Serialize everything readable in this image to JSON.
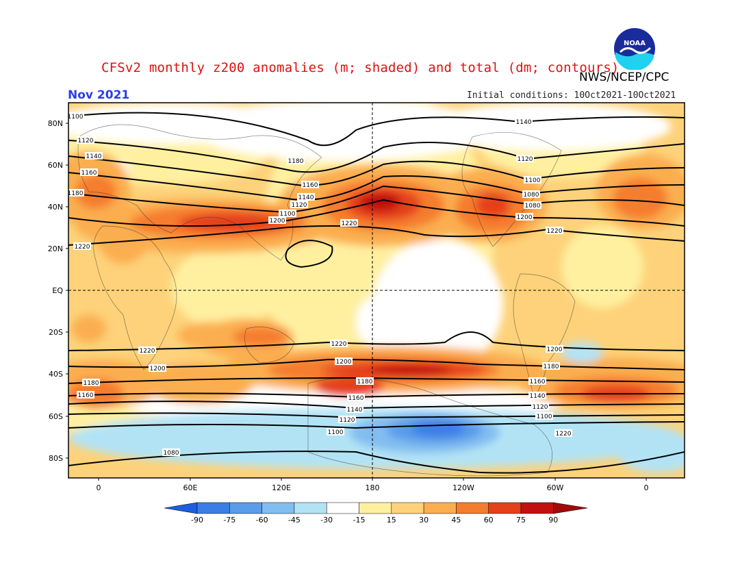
{
  "header": {
    "title": "CFSv2 monthly z200 anomalies (m; shaded) and total (dm; contours)",
    "agency": "NWS/NCEP/CPC",
    "month": "Nov 2021",
    "initial_conditions": "Initial conditions: 10Oct2021-10Oct2021",
    "logo_text": "NOAA"
  },
  "map": {
    "lat_labels": [
      "80N",
      "60N",
      "40N",
      "20N",
      "EQ",
      "20S",
      "40S",
      "60S",
      "80S"
    ],
    "lon_labels": [
      "0",
      "60E",
      "120E",
      "180",
      "120W",
      "60W",
      "0"
    ],
    "contour_labels": [
      "1100",
      "1120",
      "1140",
      "1160",
      "1180",
      "1200",
      "1220",
      "1080",
      "1100",
      "1120",
      "1140",
      "1160",
      "1180",
      "1200",
      "1220",
      "1220",
      "1200",
      "1180",
      "1160",
      "1140",
      "1120",
      "1100",
      "1080",
      "1080",
      "1200",
      "1220",
      "1180",
      "1160",
      "1140",
      "1120",
      "1100",
      "1220",
      "1200",
      "1180",
      "1160",
      "1140",
      "1120",
      "1100",
      "1220"
    ],
    "colors": {
      "neg90": "#1e5fe0",
      "neg75": "#3a7ee6",
      "neg60": "#5a9cea",
      "neg45": "#82bdf0",
      "neg30": "#b2e3f5",
      "neg15": "#ffffff",
      "pos15": "#fff0a0",
      "pos30": "#fdd27a",
      "pos45": "#fbae50",
      "pos60": "#f57d2e",
      "pos75": "#e5401a",
      "pos90": "#c01010",
      "pos_max": "#a00a0a"
    }
  },
  "legend": {
    "ticks": [
      "-90",
      "-75",
      "-60",
      "-45",
      "-30",
      "-15",
      "15",
      "30",
      "45",
      "60",
      "75",
      "90"
    ]
  }
}
